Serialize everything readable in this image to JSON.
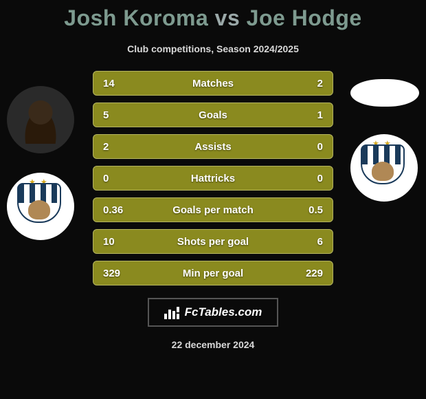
{
  "header": {
    "player_a": "Josh Koroma",
    "vs": "vs",
    "player_b": "Joe Hodge",
    "subtitle": "Club competitions, Season 2024/2025"
  },
  "stats": {
    "rows": [
      {
        "label": "Matches",
        "a": "14",
        "b": "2"
      },
      {
        "label": "Goals",
        "a": "5",
        "b": "1"
      },
      {
        "label": "Assists",
        "a": "2",
        "b": "0"
      },
      {
        "label": "Hattricks",
        "a": "0",
        "b": "0"
      },
      {
        "label": "Goals per match",
        "a": "0.36",
        "b": "0.5"
      },
      {
        "label": "Shots per goal",
        "a": "10",
        "b": "6"
      },
      {
        "label": "Min per goal",
        "a": "329",
        "b": "229"
      }
    ],
    "row_background": "#8a8a1f",
    "row_border": "#b5b560",
    "text_color": "#ffffff"
  },
  "branding": {
    "site": "FcTables.com"
  },
  "date": "22 december 2024",
  "colors": {
    "page_background": "#0a0a0a",
    "title_name": "#7d9a8f",
    "title_rest": "#9aa8a8",
    "subtitle": "#d8d8d8"
  },
  "club_crest": {
    "stars_color": "#d4a820",
    "primary": "#1a3a5a",
    "secondary": "#ffffff"
  }
}
